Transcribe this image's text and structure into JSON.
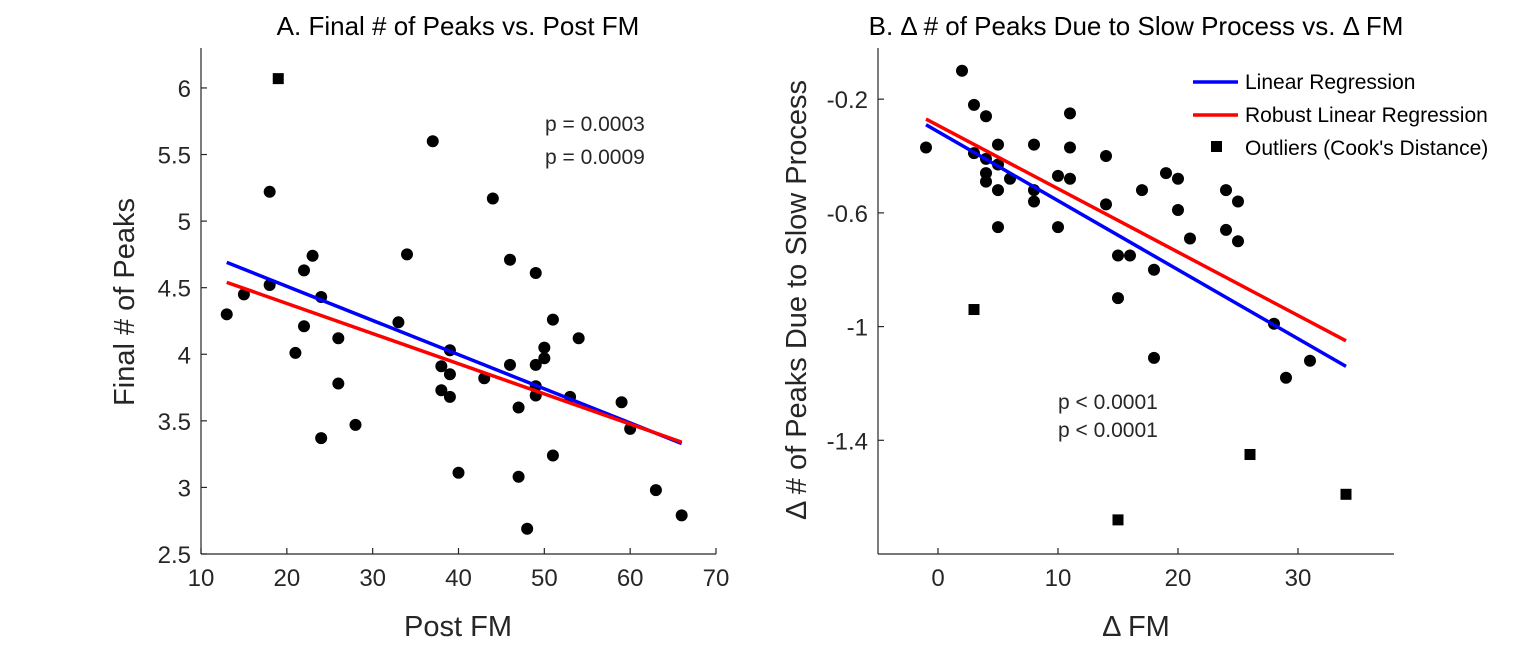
{
  "chart_data": [
    {
      "type": "scatter",
      "title": "A. Final # of Peaks vs. Post FM",
      "xlabel": "Post FM",
      "ylabel": "Final # of Peaks",
      "xlim": [
        10,
        70
      ],
      "ylim": [
        2.5,
        6.3
      ],
      "xticks": [
        10,
        20,
        30,
        40,
        50,
        60,
        70
      ],
      "yticks": [
        2.5,
        3,
        3.5,
        4,
        4.5,
        5,
        5.5,
        6
      ],
      "xtick_labels": [
        "10",
        "20",
        "30",
        "40",
        "50",
        "60",
        "70"
      ],
      "ytick_labels": [
        "2.5",
        "3",
        "3.5",
        "4",
        "4.5",
        "5",
        "5.5",
        "6"
      ],
      "grid": false,
      "points": [
        {
          "x": 13,
          "y": 4.3
        },
        {
          "x": 15,
          "y": 4.45
        },
        {
          "x": 18,
          "y": 5.22
        },
        {
          "x": 18,
          "y": 4.52
        },
        {
          "x": 21,
          "y": 4.01
        },
        {
          "x": 22,
          "y": 4.63
        },
        {
          "x": 22,
          "y": 4.21
        },
        {
          "x": 23,
          "y": 4.74
        },
        {
          "x": 24,
          "y": 4.43
        },
        {
          "x": 24,
          "y": 3.37
        },
        {
          "x": 26,
          "y": 4.12
        },
        {
          "x": 26,
          "y": 3.78
        },
        {
          "x": 28,
          "y": 3.47
        },
        {
          "x": 33,
          "y": 4.24
        },
        {
          "x": 34,
          "y": 4.75
        },
        {
          "x": 37,
          "y": 5.6
        },
        {
          "x": 38,
          "y": 3.91
        },
        {
          "x": 38,
          "y": 3.73
        },
        {
          "x": 39,
          "y": 4.03
        },
        {
          "x": 39,
          "y": 3.85
        },
        {
          "x": 39,
          "y": 3.68
        },
        {
          "x": 40,
          "y": 3.11
        },
        {
          "x": 43,
          "y": 3.82
        },
        {
          "x": 44,
          "y": 5.17
        },
        {
          "x": 46,
          "y": 4.71
        },
        {
          "x": 46,
          "y": 3.92
        },
        {
          "x": 47,
          "y": 3.6
        },
        {
          "x": 47,
          "y": 3.08
        },
        {
          "x": 48,
          "y": 2.69
        },
        {
          "x": 49,
          "y": 4.61
        },
        {
          "x": 49,
          "y": 3.92
        },
        {
          "x": 49,
          "y": 3.76
        },
        {
          "x": 49,
          "y": 3.69
        },
        {
          "x": 50,
          "y": 4.05
        },
        {
          "x": 50,
          "y": 3.97
        },
        {
          "x": 51,
          "y": 4.26
        },
        {
          "x": 51,
          "y": 3.24
        },
        {
          "x": 53,
          "y": 3.68
        },
        {
          "x": 54,
          "y": 4.12
        },
        {
          "x": 59,
          "y": 3.64
        },
        {
          "x": 60,
          "y": 3.44
        },
        {
          "x": 63,
          "y": 2.98
        },
        {
          "x": 66,
          "y": 2.79
        }
      ],
      "outliers": [
        {
          "x": 19,
          "y": 6.07
        }
      ],
      "fit_lines": [
        {
          "name": "Linear Regression",
          "color": "#0000ff",
          "x": [
            13,
            66
          ],
          "y": [
            4.69,
            3.33
          ]
        },
        {
          "name": "Robust Linear Regression",
          "color": "#ff0000",
          "x": [
            13,
            66
          ],
          "y": [
            4.54,
            3.34
          ]
        }
      ],
      "annotations": [
        {
          "text": "p = 0.0003",
          "color": "#0000ff"
        },
        {
          "text": "p = 0.0009",
          "color": "#ff0000"
        }
      ]
    },
    {
      "type": "scatter",
      "title": "B. Δ # of Peaks Due to Slow Process vs. Δ FM",
      "xlabel": "Δ FM",
      "ylabel": "Δ # of Peaks Due to Slow Process",
      "xlim": [
        -5,
        38
      ],
      "ylim": [
        -1.8,
        -0.02
      ],
      "xticks": [
        0,
        10,
        20,
        30
      ],
      "yticks": [
        -0.2,
        -0.6,
        -1,
        -1.4
      ],
      "xtick_labels": [
        "0",
        "10",
        "20",
        "30"
      ],
      "ytick_labels": [
        "-0.2",
        "-0.6",
        "-1",
        "-1.4"
      ],
      "grid": false,
      "legend_position": "top-right",
      "points": [
        {
          "x": -1,
          "y": -0.37
        },
        {
          "x": 2,
          "y": -0.1
        },
        {
          "x": 3,
          "y": -0.22
        },
        {
          "x": 3,
          "y": -0.39
        },
        {
          "x": 4,
          "y": -0.26
        },
        {
          "x": 4,
          "y": -0.41
        },
        {
          "x": 4,
          "y": -0.46
        },
        {
          "x": 4,
          "y": -0.49
        },
        {
          "x": 5,
          "y": -0.36
        },
        {
          "x": 5,
          "y": -0.43
        },
        {
          "x": 5,
          "y": -0.52
        },
        {
          "x": 5,
          "y": -0.65
        },
        {
          "x": 6,
          "y": -0.48
        },
        {
          "x": 8,
          "y": -0.36
        },
        {
          "x": 8,
          "y": -0.52
        },
        {
          "x": 8,
          "y": -0.56
        },
        {
          "x": 10,
          "y": -0.47
        },
        {
          "x": 10,
          "y": -0.65
        },
        {
          "x": 11,
          "y": -0.25
        },
        {
          "x": 11,
          "y": -0.37
        },
        {
          "x": 11,
          "y": -0.48
        },
        {
          "x": 14,
          "y": -0.4
        },
        {
          "x": 14,
          "y": -0.57
        },
        {
          "x": 15,
          "y": -0.75
        },
        {
          "x": 15,
          "y": -0.9
        },
        {
          "x": 16,
          "y": -0.75
        },
        {
          "x": 17,
          "y": -0.52
        },
        {
          "x": 18,
          "y": -0.8
        },
        {
          "x": 18,
          "y": -1.11
        },
        {
          "x": 19,
          "y": -0.46
        },
        {
          "x": 20,
          "y": -0.48
        },
        {
          "x": 20,
          "y": -0.59
        },
        {
          "x": 21,
          "y": -0.69
        },
        {
          "x": 24,
          "y": -0.52
        },
        {
          "x": 24,
          "y": -0.66
        },
        {
          "x": 25,
          "y": -0.56
        },
        {
          "x": 25,
          "y": -0.7
        },
        {
          "x": 28,
          "y": -0.99
        },
        {
          "x": 29,
          "y": -1.18
        },
        {
          "x": 31,
          "y": -1.12
        }
      ],
      "outliers": [
        {
          "x": 3,
          "y": -0.94
        },
        {
          "x": 15,
          "y": -1.68
        },
        {
          "x": 26,
          "y": -1.45
        },
        {
          "x": 34,
          "y": -1.59
        }
      ],
      "fit_lines": [
        {
          "name": "Linear Regression",
          "color": "#0000ff",
          "x": [
            -1,
            34
          ],
          "y": [
            -0.29,
            -1.14
          ]
        },
        {
          "name": "Robust Linear Regression",
          "color": "#ff0000",
          "x": [
            -1,
            34
          ],
          "y": [
            -0.27,
            -1.05
          ]
        }
      ],
      "annotations": [
        {
          "text": "p < 0.0001",
          "color": "#0000ff"
        },
        {
          "text": "p < 0.0001",
          "color": "#ff0000"
        }
      ],
      "legend": [
        {
          "label": "Linear Regression",
          "kind": "line",
          "color": "#0000ff"
        },
        {
          "label": "Robust Linear Regression",
          "kind": "line",
          "color": "#ff0000"
        },
        {
          "label": "Outliers (Cook's Distance)",
          "kind": "square-marker",
          "color": "#000000"
        }
      ]
    }
  ]
}
